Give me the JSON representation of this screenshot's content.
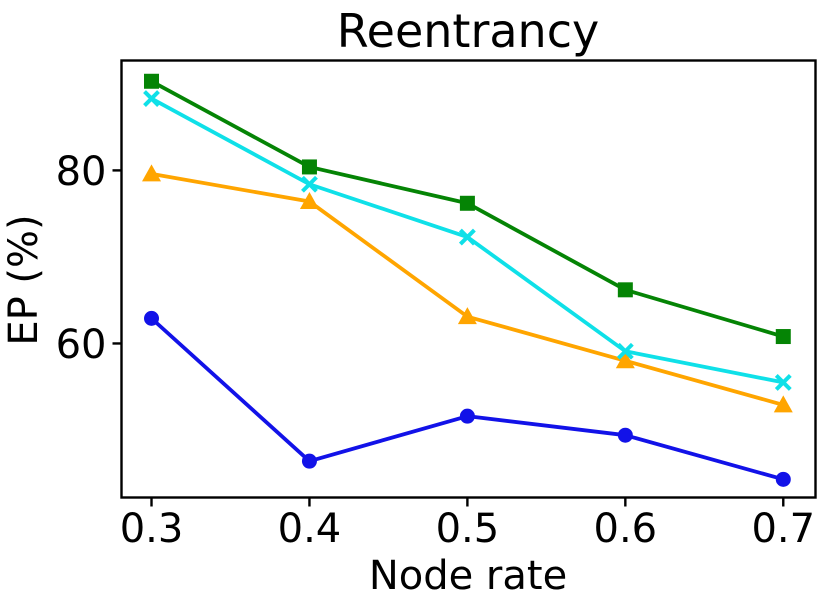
{
  "figure": {
    "background": "#ffffff",
    "axis_color": "#000000",
    "text_color": "#000000"
  },
  "chart_data": {
    "type": "line",
    "title": "Reentrancy",
    "xlabel": "Node rate",
    "ylabel": "EP (%)",
    "x": [
      0.3,
      0.4,
      0.5,
      0.6,
      0.7
    ],
    "xtick_labels": [
      "0.3",
      "0.4",
      "0.5",
      "0.6",
      "0.7"
    ],
    "ytick_values": [
      60,
      80
    ],
    "ytick_labels": [
      "60",
      "80"
    ],
    "xlim": [
      0.281,
      0.7204
    ],
    "ylim": [
      42.2,
      92.7
    ],
    "grid": false,
    "legend_position": "none",
    "series": [
      {
        "name": "blue-circles",
        "marker": "circle",
        "color": "#1212e8",
        "values": [
          62.9,
          46.4,
          51.6,
          49.4,
          44.3
        ]
      },
      {
        "name": "orange-triangles",
        "marker": "triangle",
        "color": "#ffa500",
        "values": [
          79.6,
          76.4,
          63.1,
          58.0,
          52.9
        ]
      },
      {
        "name": "cyan-x",
        "marker": "x",
        "color": "#0fe0e8",
        "values": [
          88.3,
          78.4,
          72.3,
          59.1,
          55.5
        ]
      },
      {
        "name": "green-squares",
        "marker": "square",
        "color": "#058405",
        "values": [
          90.3,
          80.4,
          76.2,
          66.2,
          60.8
        ]
      }
    ]
  }
}
